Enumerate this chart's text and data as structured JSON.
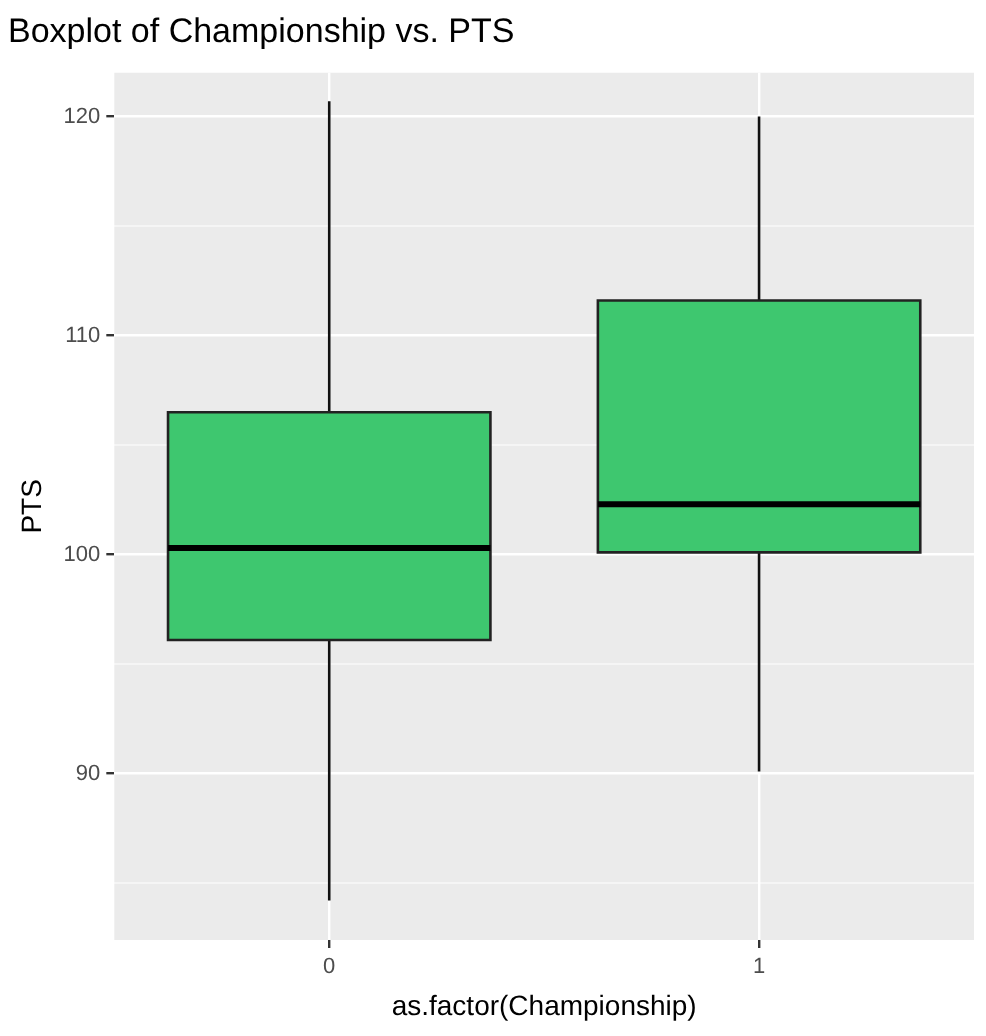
{
  "chart_data": {
    "type": "box",
    "title": "Boxplot of Championship vs. PTS",
    "xlabel": "as.factor(Championship)",
    "ylabel": "PTS",
    "categories": [
      "0",
      "1"
    ],
    "series": [
      {
        "color": "#3ec76f",
        "boxes": [
          {
            "low": 84.2,
            "q1": 96.1,
            "median": 100.3,
            "q3": 106.5,
            "high": 120.7
          },
          {
            "low": 90.1,
            "q1": 100.1,
            "median": 102.3,
            "q3": 111.6,
            "high": 120.0
          }
        ]
      }
    ],
    "ylim": [
      82.4,
      122.0
    ],
    "yticks": [
      {
        "value": 85,
        "label": null
      },
      90,
      {
        "value": 95,
        "label": null
      },
      100,
      {
        "value": 105,
        "label": null
      },
      110,
      {
        "value": 115,
        "label": null
      },
      120
    ],
    "grid": true,
    "legend": false
  }
}
